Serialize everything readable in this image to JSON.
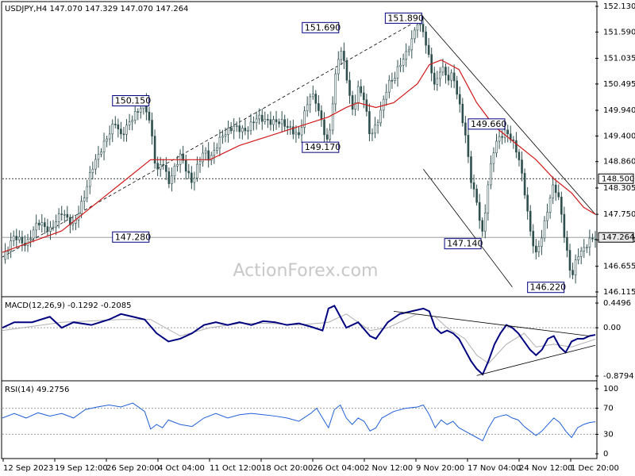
{
  "colors": {
    "candles": "#2f4f4f",
    "ma": "#d11a1a",
    "macd_line": "#000080",
    "macd_signal": "#b0b0b0",
    "rsi_line": "#2060d8",
    "guide_lines": "#000000",
    "grid": "#9e9e9e"
  },
  "chart_data": [
    {
      "type": "candlestick",
      "header": "USDJPY,H4  147.070 147.329 147.070 147.264",
      "watermark": "ActionForex.com",
      "y_ticks": [
        "152.130",
        "151.590",
        "151.035",
        "150.495",
        "149.940",
        "149.400",
        "148.860",
        "148.305",
        "147.750",
        "147.210",
        "146.655",
        "146.115"
      ],
      "ylim": [
        146.115,
        152.13
      ],
      "x_ticks": [
        "12 Sep 2023",
        "19 Sep 12:00",
        "26 Sep 20:00",
        "4 Oct 04:00",
        "11 Oct 12:00",
        "18 Oct 20:00",
        "26 Oct 04:00",
        "2 Nov 12:00",
        "9 Nov 20:00",
        "17 Nov 04:00",
        "24 Nov 12:00",
        "1 Dec 20:00"
      ],
      "levels": [
        {
          "value": 148.5,
          "label": "148.500",
          "style": "dotted"
        },
        {
          "value": 147.264,
          "label": "147.264",
          "style": "solid",
          "current": true
        }
      ],
      "annotations": [
        "150.150",
        "147.280",
        "151.690",
        "149.170",
        "151.890",
        "149.660",
        "147.140",
        "146.220"
      ],
      "close_path": [
        [
          0,
          146.8
        ],
        [
          0.02,
          147.3
        ],
        [
          0.04,
          147.1
        ],
        [
          0.06,
          147.6
        ],
        [
          0.08,
          147.4
        ],
        [
          0.1,
          147.8
        ],
        [
          0.12,
          147.5
        ],
        [
          0.14,
          148.2
        ],
        [
          0.15,
          148.7
        ],
        [
          0.17,
          149.2
        ],
        [
          0.19,
          149.7
        ],
        [
          0.2,
          149.4
        ],
        [
          0.22,
          149.8
        ],
        [
          0.24,
          150.1
        ],
        [
          0.25,
          149.6
        ],
        [
          0.26,
          148.6
        ],
        [
          0.27,
          148.9
        ],
        [
          0.28,
          148.4
        ],
        [
          0.3,
          149.0
        ],
        [
          0.31,
          148.7
        ],
        [
          0.32,
          148.4
        ],
        [
          0.33,
          148.8
        ],
        [
          0.34,
          149.1
        ],
        [
          0.35,
          148.9
        ],
        [
          0.37,
          149.4
        ],
        [
          0.39,
          149.6
        ],
        [
          0.41,
          149.5
        ],
        [
          0.43,
          149.8
        ],
        [
          0.45,
          149.7
        ],
        [
          0.47,
          149.7
        ],
        [
          0.48,
          149.6
        ],
        [
          0.5,
          149.4
        ],
        [
          0.51,
          149.9
        ],
        [
          0.52,
          150.3
        ],
        [
          0.53,
          150.1
        ],
        [
          0.54,
          149.6
        ],
        [
          0.55,
          149.2
        ],
        [
          0.56,
          150.5
        ],
        [
          0.57,
          151.3
        ],
        [
          0.58,
          150.7
        ],
        [
          0.59,
          149.9
        ],
        [
          0.6,
          150.4
        ],
        [
          0.61,
          150.2
        ],
        [
          0.62,
          149.4
        ],
        [
          0.63,
          149.6
        ],
        [
          0.64,
          150.0
        ],
        [
          0.65,
          150.5
        ],
        [
          0.66,
          150.6
        ],
        [
          0.67,
          150.9
        ],
        [
          0.68,
          151.1
        ],
        [
          0.69,
          151.4
        ],
        [
          0.7,
          151.8
        ],
        [
          0.71,
          151.6
        ],
        [
          0.72,
          151.0
        ],
        [
          0.73,
          150.4
        ],
        [
          0.74,
          150.9
        ],
        [
          0.75,
          150.6
        ],
        [
          0.76,
          150.7
        ],
        [
          0.77,
          150.1
        ],
        [
          0.78,
          149.5
        ],
        [
          0.79,
          148.5
        ],
        [
          0.8,
          148.0
        ],
        [
          0.81,
          147.3
        ],
        [
          0.82,
          148.5
        ],
        [
          0.83,
          149.2
        ],
        [
          0.84,
          149.4
        ],
        [
          0.85,
          149.5
        ],
        [
          0.86,
          149.3
        ],
        [
          0.87,
          149.0
        ],
        [
          0.88,
          148.3
        ],
        [
          0.89,
          147.4
        ],
        [
          0.9,
          146.9
        ],
        [
          0.91,
          147.3
        ],
        [
          0.92,
          147.9
        ],
        [
          0.93,
          148.4
        ],
        [
          0.94,
          148.0
        ],
        [
          0.95,
          147.1
        ],
        [
          0.96,
          146.4
        ],
        [
          0.97,
          146.9
        ],
        [
          0.98,
          147.0
        ],
        [
          0.99,
          147.2
        ],
        [
          1.0,
          147.264
        ]
      ],
      "ma_path": [
        [
          0,
          146.95
        ],
        [
          0.1,
          147.4
        ],
        [
          0.2,
          148.4
        ],
        [
          0.25,
          148.9
        ],
        [
          0.3,
          148.9
        ],
        [
          0.35,
          148.9
        ],
        [
          0.4,
          149.2
        ],
        [
          0.45,
          149.4
        ],
        [
          0.5,
          149.6
        ],
        [
          0.55,
          149.8
        ],
        [
          0.58,
          150.0
        ],
        [
          0.6,
          150.1
        ],
        [
          0.63,
          150.0
        ],
        [
          0.66,
          150.1
        ],
        [
          0.7,
          150.5
        ],
        [
          0.72,
          150.9
        ],
        [
          0.74,
          151.0
        ],
        [
          0.77,
          150.8
        ],
        [
          0.8,
          150.1
        ],
        [
          0.83,
          149.6
        ],
        [
          0.86,
          149.3
        ],
        [
          0.9,
          148.9
        ],
        [
          0.93,
          148.5
        ],
        [
          0.96,
          148.2
        ],
        [
          0.98,
          147.9
        ],
        [
          1.0,
          147.75
        ]
      ],
      "trend_lines": [
        {
          "from": [
            0.0,
            146.85
          ],
          "to": [
            0.71,
            151.9
          ],
          "style": "dashed"
        },
        {
          "from": [
            0.71,
            151.9
          ],
          "to": [
            1.0,
            147.75
          ],
          "style": "solid"
        },
        {
          "from": [
            0.71,
            148.7
          ],
          "to": [
            0.86,
            146.22
          ],
          "style": "solid"
        }
      ]
    },
    {
      "type": "line",
      "name": "MACD(12,26,9) -0.1292 -0.2085",
      "y_ticks": [
        "0.4496",
        "0.00",
        "-0.8794"
      ],
      "ylim": [
        -0.8794,
        0.4496
      ],
      "zero_line": 0,
      "macd_path": [
        [
          0,
          0.0
        ],
        [
          0.02,
          0.1
        ],
        [
          0.05,
          0.1
        ],
        [
          0.08,
          0.2
        ],
        [
          0.1,
          0.0
        ],
        [
          0.12,
          0.1
        ],
        [
          0.15,
          0.05
        ],
        [
          0.18,
          0.15
        ],
        [
          0.2,
          0.25
        ],
        [
          0.22,
          0.2
        ],
        [
          0.24,
          0.15
        ],
        [
          0.26,
          -0.1
        ],
        [
          0.28,
          -0.25
        ],
        [
          0.3,
          -0.2
        ],
        [
          0.32,
          -0.1
        ],
        [
          0.34,
          0.05
        ],
        [
          0.36,
          0.1
        ],
        [
          0.38,
          0.05
        ],
        [
          0.4,
          0.1
        ],
        [
          0.42,
          0.05
        ],
        [
          0.44,
          0.12
        ],
        [
          0.46,
          0.1
        ],
        [
          0.48,
          0.05
        ],
        [
          0.5,
          0.08
        ],
        [
          0.52,
          0.02
        ],
        [
          0.54,
          -0.05
        ],
        [
          0.55,
          0.35
        ],
        [
          0.56,
          0.4
        ],
        [
          0.57,
          0.2
        ],
        [
          0.58,
          0.0
        ],
        [
          0.6,
          0.1
        ],
        [
          0.62,
          -0.15
        ],
        [
          0.63,
          -0.2
        ],
        [
          0.65,
          0.1
        ],
        [
          0.67,
          0.25
        ],
        [
          0.69,
          0.3
        ],
        [
          0.71,
          0.35
        ],
        [
          0.72,
          0.3
        ],
        [
          0.73,
          0.0
        ],
        [
          0.74,
          -0.1
        ],
        [
          0.75,
          -0.05
        ],
        [
          0.76,
          -0.1
        ],
        [
          0.77,
          -0.2
        ],
        [
          0.78,
          -0.4
        ],
        [
          0.79,
          -0.6
        ],
        [
          0.8,
          -0.75
        ],
        [
          0.81,
          -0.85
        ],
        [
          0.82,
          -0.6
        ],
        [
          0.83,
          -0.3
        ],
        [
          0.84,
          -0.1
        ],
        [
          0.85,
          0.05
        ],
        [
          0.86,
          0.0
        ],
        [
          0.87,
          -0.1
        ],
        [
          0.88,
          -0.25
        ],
        [
          0.89,
          -0.4
        ],
        [
          0.9,
          -0.5
        ],
        [
          0.91,
          -0.4
        ],
        [
          0.92,
          -0.2
        ],
        [
          0.93,
          -0.15
        ],
        [
          0.94,
          -0.35
        ],
        [
          0.95,
          -0.45
        ],
        [
          0.96,
          -0.25
        ],
        [
          0.97,
          -0.2
        ],
        [
          0.98,
          -0.2
        ],
        [
          0.99,
          -0.15
        ],
        [
          1.0,
          -0.1292
        ]
      ],
      "signal_path": [
        [
          0,
          -0.05
        ],
        [
          0.1,
          0.1
        ],
        [
          0.2,
          0.15
        ],
        [
          0.25,
          0.15
        ],
        [
          0.3,
          -0.15
        ],
        [
          0.35,
          0.0
        ],
        [
          0.4,
          0.08
        ],
        [
          0.45,
          0.08
        ],
        [
          0.5,
          0.05
        ],
        [
          0.55,
          0.1
        ],
        [
          0.58,
          0.25
        ],
        [
          0.62,
          -0.05
        ],
        [
          0.65,
          0.0
        ],
        [
          0.7,
          0.25
        ],
        [
          0.73,
          0.2
        ],
        [
          0.75,
          0.0
        ],
        [
          0.78,
          -0.2
        ],
        [
          0.8,
          -0.5
        ],
        [
          0.82,
          -0.65
        ],
        [
          0.85,
          -0.3
        ],
        [
          0.88,
          -0.1
        ],
        [
          0.9,
          -0.35
        ],
        [
          0.93,
          -0.3
        ],
        [
          0.96,
          -0.35
        ],
        [
          1.0,
          -0.2085
        ]
      ],
      "trend_lines": [
        {
          "from": [
            0.66,
            0.3
          ],
          "to": [
            0.99,
            -0.15
          ]
        },
        {
          "from": [
            0.8,
            -0.87
          ],
          "to": [
            1.0,
            -0.32
          ]
        }
      ]
    },
    {
      "type": "line",
      "name": "RSI(14) 49.2756",
      "y_ticks": [
        "100",
        "70",
        "30",
        "0"
      ],
      "ylim": [
        0,
        100
      ],
      "levels": [
        70,
        30
      ],
      "rsi_path": [
        [
          0,
          55
        ],
        [
          0.02,
          62
        ],
        [
          0.04,
          55
        ],
        [
          0.06,
          63
        ],
        [
          0.08,
          58
        ],
        [
          0.1,
          62
        ],
        [
          0.12,
          55
        ],
        [
          0.14,
          68
        ],
        [
          0.16,
          72
        ],
        [
          0.18,
          75
        ],
        [
          0.2,
          72
        ],
        [
          0.22,
          78
        ],
        [
          0.24,
          65
        ],
        [
          0.25,
          38
        ],
        [
          0.26,
          45
        ],
        [
          0.27,
          40
        ],
        [
          0.28,
          52
        ],
        [
          0.3,
          45
        ],
        [
          0.32,
          42
        ],
        [
          0.34,
          55
        ],
        [
          0.36,
          62
        ],
        [
          0.38,
          55
        ],
        [
          0.4,
          60
        ],
        [
          0.42,
          62
        ],
        [
          0.44,
          60
        ],
        [
          0.46,
          58
        ],
        [
          0.48,
          55
        ],
        [
          0.5,
          50
        ],
        [
          0.52,
          62
        ],
        [
          0.53,
          70
        ],
        [
          0.54,
          55
        ],
        [
          0.55,
          40
        ],
        [
          0.56,
          68
        ],
        [
          0.57,
          75
        ],
        [
          0.58,
          55
        ],
        [
          0.59,
          45
        ],
        [
          0.6,
          55
        ],
        [
          0.61,
          50
        ],
        [
          0.62,
          35
        ],
        [
          0.63,
          40
        ],
        [
          0.64,
          55
        ],
        [
          0.66,
          65
        ],
        [
          0.68,
          70
        ],
        [
          0.7,
          72
        ],
        [
          0.71,
          75
        ],
        [
          0.72,
          60
        ],
        [
          0.73,
          40
        ],
        [
          0.74,
          52
        ],
        [
          0.75,
          45
        ],
        [
          0.76,
          50
        ],
        [
          0.77,
          40
        ],
        [
          0.78,
          35
        ],
        [
          0.79,
          30
        ],
        [
          0.8,
          25
        ],
        [
          0.81,
          20
        ],
        [
          0.82,
          40
        ],
        [
          0.83,
          55
        ],
        [
          0.84,
          58
        ],
        [
          0.85,
          60
        ],
        [
          0.86,
          55
        ],
        [
          0.87,
          52
        ],
        [
          0.88,
          42
        ],
        [
          0.89,
          35
        ],
        [
          0.9,
          28
        ],
        [
          0.91,
          35
        ],
        [
          0.92,
          45
        ],
        [
          0.93,
          55
        ],
        [
          0.94,
          48
        ],
        [
          0.95,
          35
        ],
        [
          0.96,
          25
        ],
        [
          0.97,
          40
        ],
        [
          0.98,
          45
        ],
        [
          0.99,
          48
        ],
        [
          1.0,
          49.2756
        ]
      ]
    }
  ]
}
